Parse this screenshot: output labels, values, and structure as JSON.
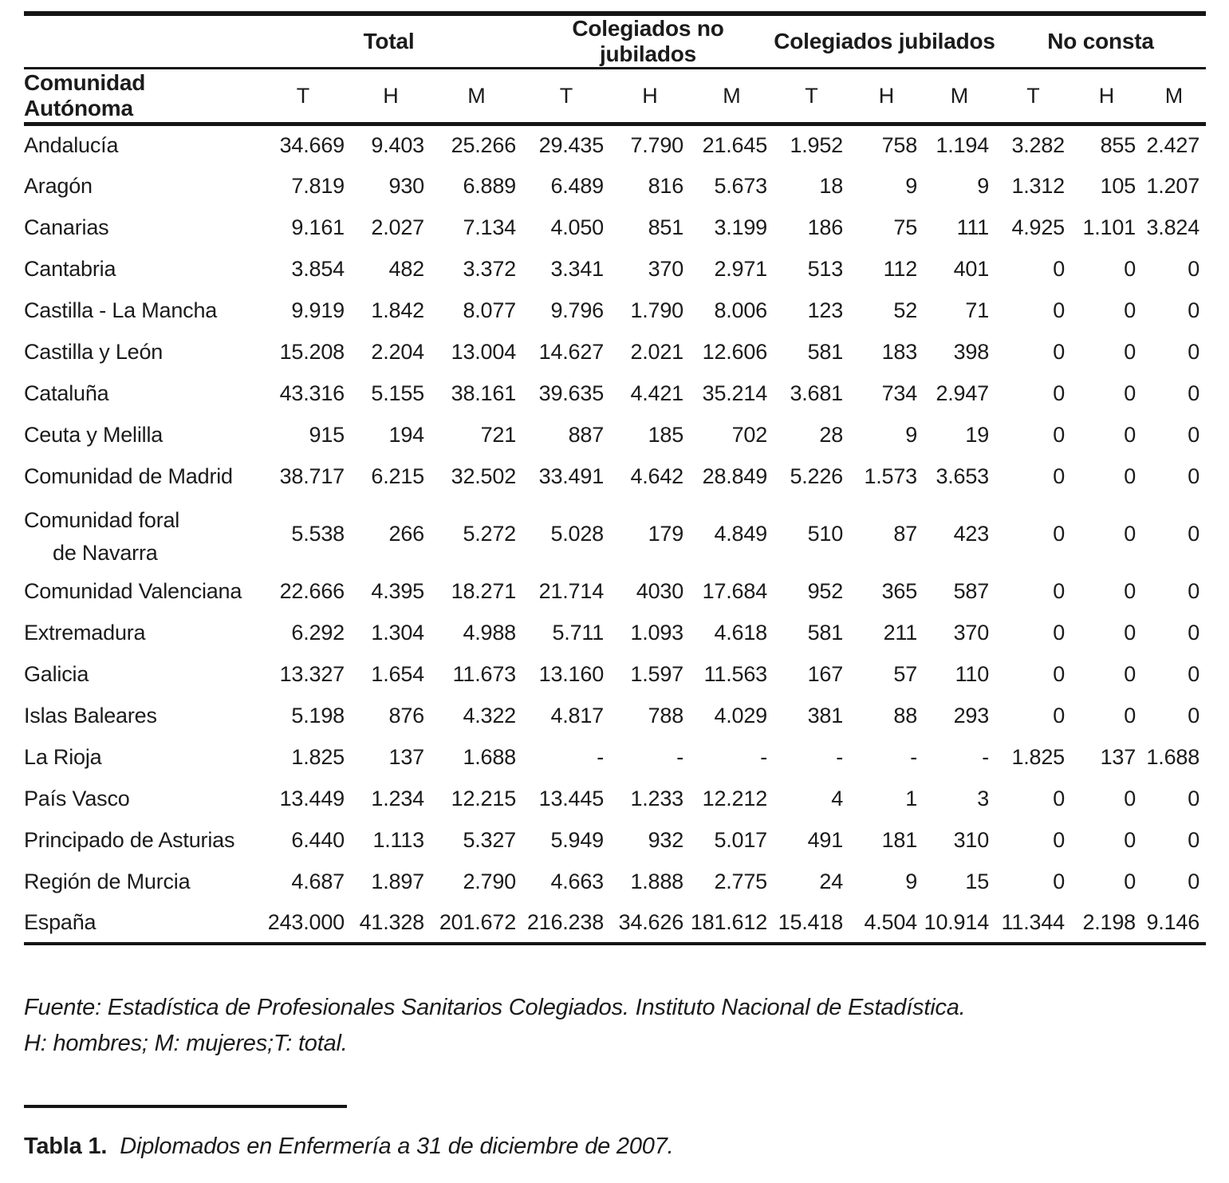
{
  "table": {
    "col_groups": [
      {
        "label": "",
        "span": 1
      },
      {
        "label": "Total",
        "span": 3
      },
      {
        "label": "Colegiados no jubilados",
        "span": 3
      },
      {
        "label": "Colegiados jubilados",
        "span": 3
      },
      {
        "label": "No consta",
        "span": 3
      }
    ],
    "row_header": "Comunidad Autónoma",
    "sub_headers": [
      "T",
      "H",
      "M",
      "T",
      "H",
      "M",
      "T",
      "H",
      "M",
      "T",
      "H",
      "M"
    ],
    "rows": [
      {
        "name": "Andalucía",
        "name2": "",
        "values": [
          "34.669",
          "9.403",
          "25.266",
          "29.435",
          "7.790",
          "21.645",
          "1.952",
          "758",
          "1.194",
          "3.282",
          "855",
          "2.427"
        ]
      },
      {
        "name": "Aragón",
        "name2": "",
        "values": [
          "7.819",
          "930",
          "6.889",
          "6.489",
          "816",
          "5.673",
          "18",
          "9",
          "9",
          "1.312",
          "105",
          "1.207"
        ]
      },
      {
        "name": "Canarias",
        "name2": "",
        "values": [
          "9.161",
          "2.027",
          "7.134",
          "4.050",
          "851",
          "3.199",
          "186",
          "75",
          "111",
          "4.925",
          "1.101",
          "3.824"
        ]
      },
      {
        "name": "Cantabria",
        "name2": "",
        "values": [
          "3.854",
          "482",
          "3.372",
          "3.341",
          "370",
          "2.971",
          "513",
          "112",
          "401",
          "0",
          "0",
          "0"
        ]
      },
      {
        "name": "Castilla - La Mancha",
        "name2": "",
        "values": [
          "9.919",
          "1.842",
          "8.077",
          "9.796",
          "1.790",
          "8.006",
          "123",
          "52",
          "71",
          "0",
          "0",
          "0"
        ]
      },
      {
        "name": "Castilla y León",
        "name2": "",
        "values": [
          "15.208",
          "2.204",
          "13.004",
          "14.627",
          "2.021",
          "12.606",
          "581",
          "183",
          "398",
          "0",
          "0",
          "0"
        ]
      },
      {
        "name": "Cataluña",
        "name2": "",
        "values": [
          "43.316",
          "5.155",
          "38.161",
          "39.635",
          "4.421",
          "35.214",
          "3.681",
          "734",
          "2.947",
          "0",
          "0",
          "0"
        ]
      },
      {
        "name": "Ceuta y Melilla",
        "name2": "",
        "values": [
          "915",
          "194",
          "721",
          "887",
          "185",
          "702",
          "28",
          "9",
          "19",
          "0",
          "0",
          "0"
        ]
      },
      {
        "name": "Comunidad de Madrid",
        "name2": "",
        "values": [
          "38.717",
          "6.215",
          "32.502",
          "33.491",
          "4.642",
          "28.849",
          "5.226",
          "1.573",
          "3.653",
          "0",
          "0",
          "0"
        ]
      },
      {
        "name": "Comunidad foral",
        "name2": "de Navarra",
        "values": [
          "5.538",
          "266",
          "5.272",
          "5.028",
          "179",
          "4.849",
          "510",
          "87",
          "423",
          "0",
          "0",
          "0"
        ]
      },
      {
        "name": "Comunidad Valenciana",
        "name2": "",
        "values": [
          "22.666",
          "4.395",
          "18.271",
          "21.714",
          "4030",
          "17.684",
          "952",
          "365",
          "587",
          "0",
          "0",
          "0"
        ]
      },
      {
        "name": "Extremadura",
        "name2": "",
        "values": [
          "6.292",
          "1.304",
          "4.988",
          "5.711",
          "1.093",
          "4.618",
          "581",
          "211",
          "370",
          "0",
          "0",
          "0"
        ]
      },
      {
        "name": "Galicia",
        "name2": "",
        "values": [
          "13.327",
          "1.654",
          "11.673",
          "13.160",
          "1.597",
          "11.563",
          "167",
          "57",
          "110",
          "0",
          "0",
          "0"
        ]
      },
      {
        "name": "Islas Baleares",
        "name2": "",
        "values": [
          "5.198",
          "876",
          "4.322",
          "4.817",
          "788",
          "4.029",
          "381",
          "88",
          "293",
          "0",
          "0",
          "0"
        ]
      },
      {
        "name": "La Rioja",
        "name2": "",
        "values": [
          "1.825",
          "137",
          "1.688",
          "-",
          "-",
          "-",
          "-",
          "-",
          "-",
          "1.825",
          "137",
          "1.688"
        ]
      },
      {
        "name": "País Vasco",
        "name2": "",
        "values": [
          "13.449",
          "1.234",
          "12.215",
          "13.445",
          "1.233",
          "12.212",
          "4",
          "1",
          "3",
          "0",
          "0",
          "0"
        ]
      },
      {
        "name": "Principado de Asturias",
        "name2": "",
        "values": [
          "6.440",
          "1.113",
          "5.327",
          "5.949",
          "932",
          "5.017",
          "491",
          "181",
          "310",
          "0",
          "0",
          "0"
        ]
      },
      {
        "name": "Región de Murcia",
        "name2": "",
        "values": [
          "4.687",
          "1.897",
          "2.790",
          "4.663",
          "1.888",
          "2.775",
          "24",
          "9",
          "15",
          "0",
          "0",
          "0"
        ]
      },
      {
        "name": "España",
        "name2": "",
        "values": [
          "243.000",
          "41.328",
          "201.672",
          "216.238",
          "34.626",
          "181.612",
          "15.418",
          "4.504",
          "10.914",
          "11.344",
          "2.198",
          "9.146"
        ]
      }
    ]
  },
  "footer": {
    "source": "Fuente: Estadística de Profesionales Sanitarios Colegiados. Instituto Nacional de Estadística.",
    "legend": "H: hombres; M: mujeres;T: total.",
    "caption_label": "Tabla 1.",
    "caption_text": "Diplomados en Enfermería a 31 de diciembre de 2007."
  },
  "colors": {
    "rule": "#151515",
    "text": "#1b1b1b",
    "background": "#ffffff"
  }
}
